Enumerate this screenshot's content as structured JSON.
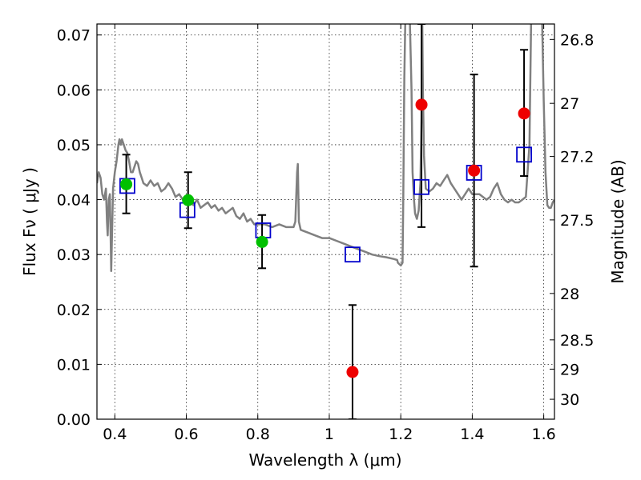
{
  "chart_data": {
    "type": "scatter",
    "xlabel": "Wavelength  λ (μm)",
    "ylabel": "Flux  Fν  ( μJy )",
    "ylabel2": "Magnitude (AB)",
    "xlim": [
      0.35,
      1.63
    ],
    "ylim": [
      0.0,
      0.072
    ],
    "grid": true,
    "x_ticks": [
      0.4,
      0.6,
      0.8,
      1.0,
      1.2,
      1.4,
      1.6
    ],
    "x_tick_labels": [
      "0.4",
      "0.6",
      "0.8",
      "1",
      "1.2",
      "1.4",
      "1.6"
    ],
    "y_ticks": [
      0.0,
      0.01,
      0.02,
      0.03,
      0.04,
      0.05,
      0.06,
      0.07
    ],
    "y_tick_labels": [
      "0.00",
      "0.01",
      "0.02",
      "0.03",
      "0.04",
      "0.05",
      "0.06",
      "0.07"
    ],
    "mag_ticks": [
      26.8,
      27.0,
      27.2,
      27.5,
      28.0,
      28.5,
      29.0,
      30.0
    ],
    "mag_tick_labels": [
      "26.8",
      "27",
      "27.2",
      "27.5",
      "28",
      "28.5",
      "29",
      "30"
    ],
    "colors": {
      "spectrum": "#808080",
      "model_box": "#0000cc",
      "observed_green": "#00c000",
      "observed_red": "#ee0000",
      "errorbar": "#000000"
    },
    "model_spectrum": [
      [
        0.35,
        0.043
      ],
      [
        0.355,
        0.045
      ],
      [
        0.36,
        0.044
      ],
      [
        0.365,
        0.041
      ],
      [
        0.37,
        0.04
      ],
      [
        0.375,
        0.042
      ],
      [
        0.378,
        0.036
      ],
      [
        0.38,
        0.0335
      ],
      [
        0.383,
        0.04
      ],
      [
        0.386,
        0.041
      ],
      [
        0.388,
        0.034
      ],
      [
        0.39,
        0.027
      ],
      [
        0.392,
        0.033
      ],
      [
        0.395,
        0.042
      ],
      [
        0.4,
        0.045
      ],
      [
        0.405,
        0.047
      ],
      [
        0.41,
        0.05
      ],
      [
        0.413,
        0.051
      ],
      [
        0.417,
        0.05
      ],
      [
        0.42,
        0.051
      ],
      [
        0.425,
        0.05
      ],
      [
        0.43,
        0.049
      ],
      [
        0.435,
        0.0485
      ],
      [
        0.44,
        0.047
      ],
      [
        0.445,
        0.045
      ],
      [
        0.45,
        0.045
      ],
      [
        0.455,
        0.046
      ],
      [
        0.46,
        0.047
      ],
      [
        0.465,
        0.0465
      ],
      [
        0.47,
        0.045
      ],
      [
        0.475,
        0.044
      ],
      [
        0.48,
        0.043
      ],
      [
        0.49,
        0.0425
      ],
      [
        0.5,
        0.0435
      ],
      [
        0.51,
        0.0425
      ],
      [
        0.52,
        0.043
      ],
      [
        0.53,
        0.0415
      ],
      [
        0.54,
        0.042
      ],
      [
        0.55,
        0.043
      ],
      [
        0.56,
        0.042
      ],
      [
        0.57,
        0.0405
      ],
      [
        0.58,
        0.041
      ],
      [
        0.59,
        0.04
      ],
      [
        0.6,
        0.0405
      ],
      [
        0.61,
        0.0395
      ],
      [
        0.62,
        0.039
      ],
      [
        0.63,
        0.04
      ],
      [
        0.64,
        0.0385
      ],
      [
        0.65,
        0.039
      ],
      [
        0.66,
        0.0395
      ],
      [
        0.67,
        0.0385
      ],
      [
        0.68,
        0.039
      ],
      [
        0.69,
        0.038
      ],
      [
        0.7,
        0.0385
      ],
      [
        0.71,
        0.0375
      ],
      [
        0.72,
        0.038
      ],
      [
        0.73,
        0.0385
      ],
      [
        0.74,
        0.037
      ],
      [
        0.75,
        0.0365
      ],
      [
        0.76,
        0.0375
      ],
      [
        0.77,
        0.036
      ],
      [
        0.78,
        0.0365
      ],
      [
        0.79,
        0.0355
      ],
      [
        0.8,
        0.0355
      ],
      [
        0.82,
        0.0355
      ],
      [
        0.84,
        0.035
      ],
      [
        0.86,
        0.0355
      ],
      [
        0.88,
        0.035
      ],
      [
        0.9,
        0.035
      ],
      [
        0.905,
        0.036
      ],
      [
        0.91,
        0.045
      ],
      [
        0.912,
        0.0465
      ],
      [
        0.915,
        0.036
      ],
      [
        0.92,
        0.0345
      ],
      [
        0.94,
        0.034
      ],
      [
        0.96,
        0.0335
      ],
      [
        0.98,
        0.033
      ],
      [
        1.0,
        0.033
      ],
      [
        1.02,
        0.0325
      ],
      [
        1.04,
        0.032
      ],
      [
        1.06,
        0.0315
      ],
      [
        1.08,
        0.031
      ],
      [
        1.1,
        0.0305
      ],
      [
        1.12,
        0.03
      ],
      [
        1.14,
        0.0297
      ],
      [
        1.16,
        0.0295
      ],
      [
        1.18,
        0.0292
      ],
      [
        1.19,
        0.029
      ],
      [
        1.192,
        0.0285
      ],
      [
        1.2,
        0.028
      ],
      [
        1.205,
        0.0285
      ],
      [
        1.207,
        0.04
      ],
      [
        1.21,
        0.062
      ],
      [
        1.213,
        0.074
      ],
      [
        1.225,
        0.074
      ],
      [
        1.23,
        0.06
      ],
      [
        1.233,
        0.045
      ],
      [
        1.237,
        0.04
      ],
      [
        1.24,
        0.0375
      ],
      [
        1.245,
        0.0365
      ],
      [
        1.25,
        0.038
      ],
      [
        1.255,
        0.043
      ],
      [
        1.258,
        0.055
      ],
      [
        1.26,
        0.074
      ],
      [
        1.262,
        0.06
      ],
      [
        1.265,
        0.048
      ],
      [
        1.27,
        0.042
      ],
      [
        1.28,
        0.0415
      ],
      [
        1.29,
        0.042
      ],
      [
        1.3,
        0.043
      ],
      [
        1.31,
        0.0425
      ],
      [
        1.32,
        0.0435
      ],
      [
        1.33,
        0.0445
      ],
      [
        1.34,
        0.043
      ],
      [
        1.35,
        0.042
      ],
      [
        1.36,
        0.041
      ],
      [
        1.37,
        0.04
      ],
      [
        1.38,
        0.041
      ],
      [
        1.39,
        0.042
      ],
      [
        1.4,
        0.041
      ],
      [
        1.42,
        0.041
      ],
      [
        1.44,
        0.04
      ],
      [
        1.45,
        0.0405
      ],
      [
        1.46,
        0.042
      ],
      [
        1.47,
        0.043
      ],
      [
        1.48,
        0.041
      ],
      [
        1.49,
        0.04
      ],
      [
        1.5,
        0.0395
      ],
      [
        1.51,
        0.04
      ],
      [
        1.52,
        0.0395
      ],
      [
        1.53,
        0.0395
      ],
      [
        1.54,
        0.04
      ],
      [
        1.55,
        0.0405
      ],
      [
        1.56,
        0.05
      ],
      [
        1.565,
        0.074
      ],
      [
        1.595,
        0.074
      ],
      [
        1.6,
        0.058
      ],
      [
        1.605,
        0.045
      ],
      [
        1.61,
        0.039
      ],
      [
        1.615,
        0.0385
      ],
      [
        1.62,
        0.0385
      ],
      [
        1.625,
        0.0395
      ],
      [
        1.63,
        0.04
      ]
    ],
    "series": [
      {
        "marker": "open-square",
        "points": [
          {
            "x": 0.435,
            "y": 0.0425
          },
          {
            "x": 0.603,
            "y": 0.0381
          },
          {
            "x": 0.815,
            "y": 0.0344
          },
          {
            "x": 1.065,
            "y": 0.03
          },
          {
            "x": 1.258,
            "y": 0.0423
          },
          {
            "x": 1.405,
            "y": 0.0449
          },
          {
            "x": 1.545,
            "y": 0.0482
          }
        ]
      },
      {
        "marker": "filled-circle-green",
        "points": [
          {
            "x": 0.432,
            "y": 0.0428,
            "yerr": [
              0.0375,
              0.0482
            ]
          },
          {
            "x": 0.605,
            "y": 0.0399,
            "yerr": [
              0.0348,
              0.045
            ]
          },
          {
            "x": 0.812,
            "y": 0.0323,
            "yerr": [
              0.0275,
              0.0372
            ]
          }
        ]
      },
      {
        "marker": "filled-circle-red",
        "points": [
          {
            "x": 1.065,
            "y": 0.0086,
            "yerr": [
              0.0,
              0.0208
            ]
          },
          {
            "x": 1.258,
            "y": 0.0573,
            "yerr": [
              0.035,
              0.072
            ]
          },
          {
            "x": 1.405,
            "y": 0.0453,
            "yerr": [
              0.0278,
              0.0628
            ]
          },
          {
            "x": 1.545,
            "y": 0.0557,
            "yerr": [
              0.0443,
              0.0673
            ]
          }
        ]
      }
    ]
  }
}
